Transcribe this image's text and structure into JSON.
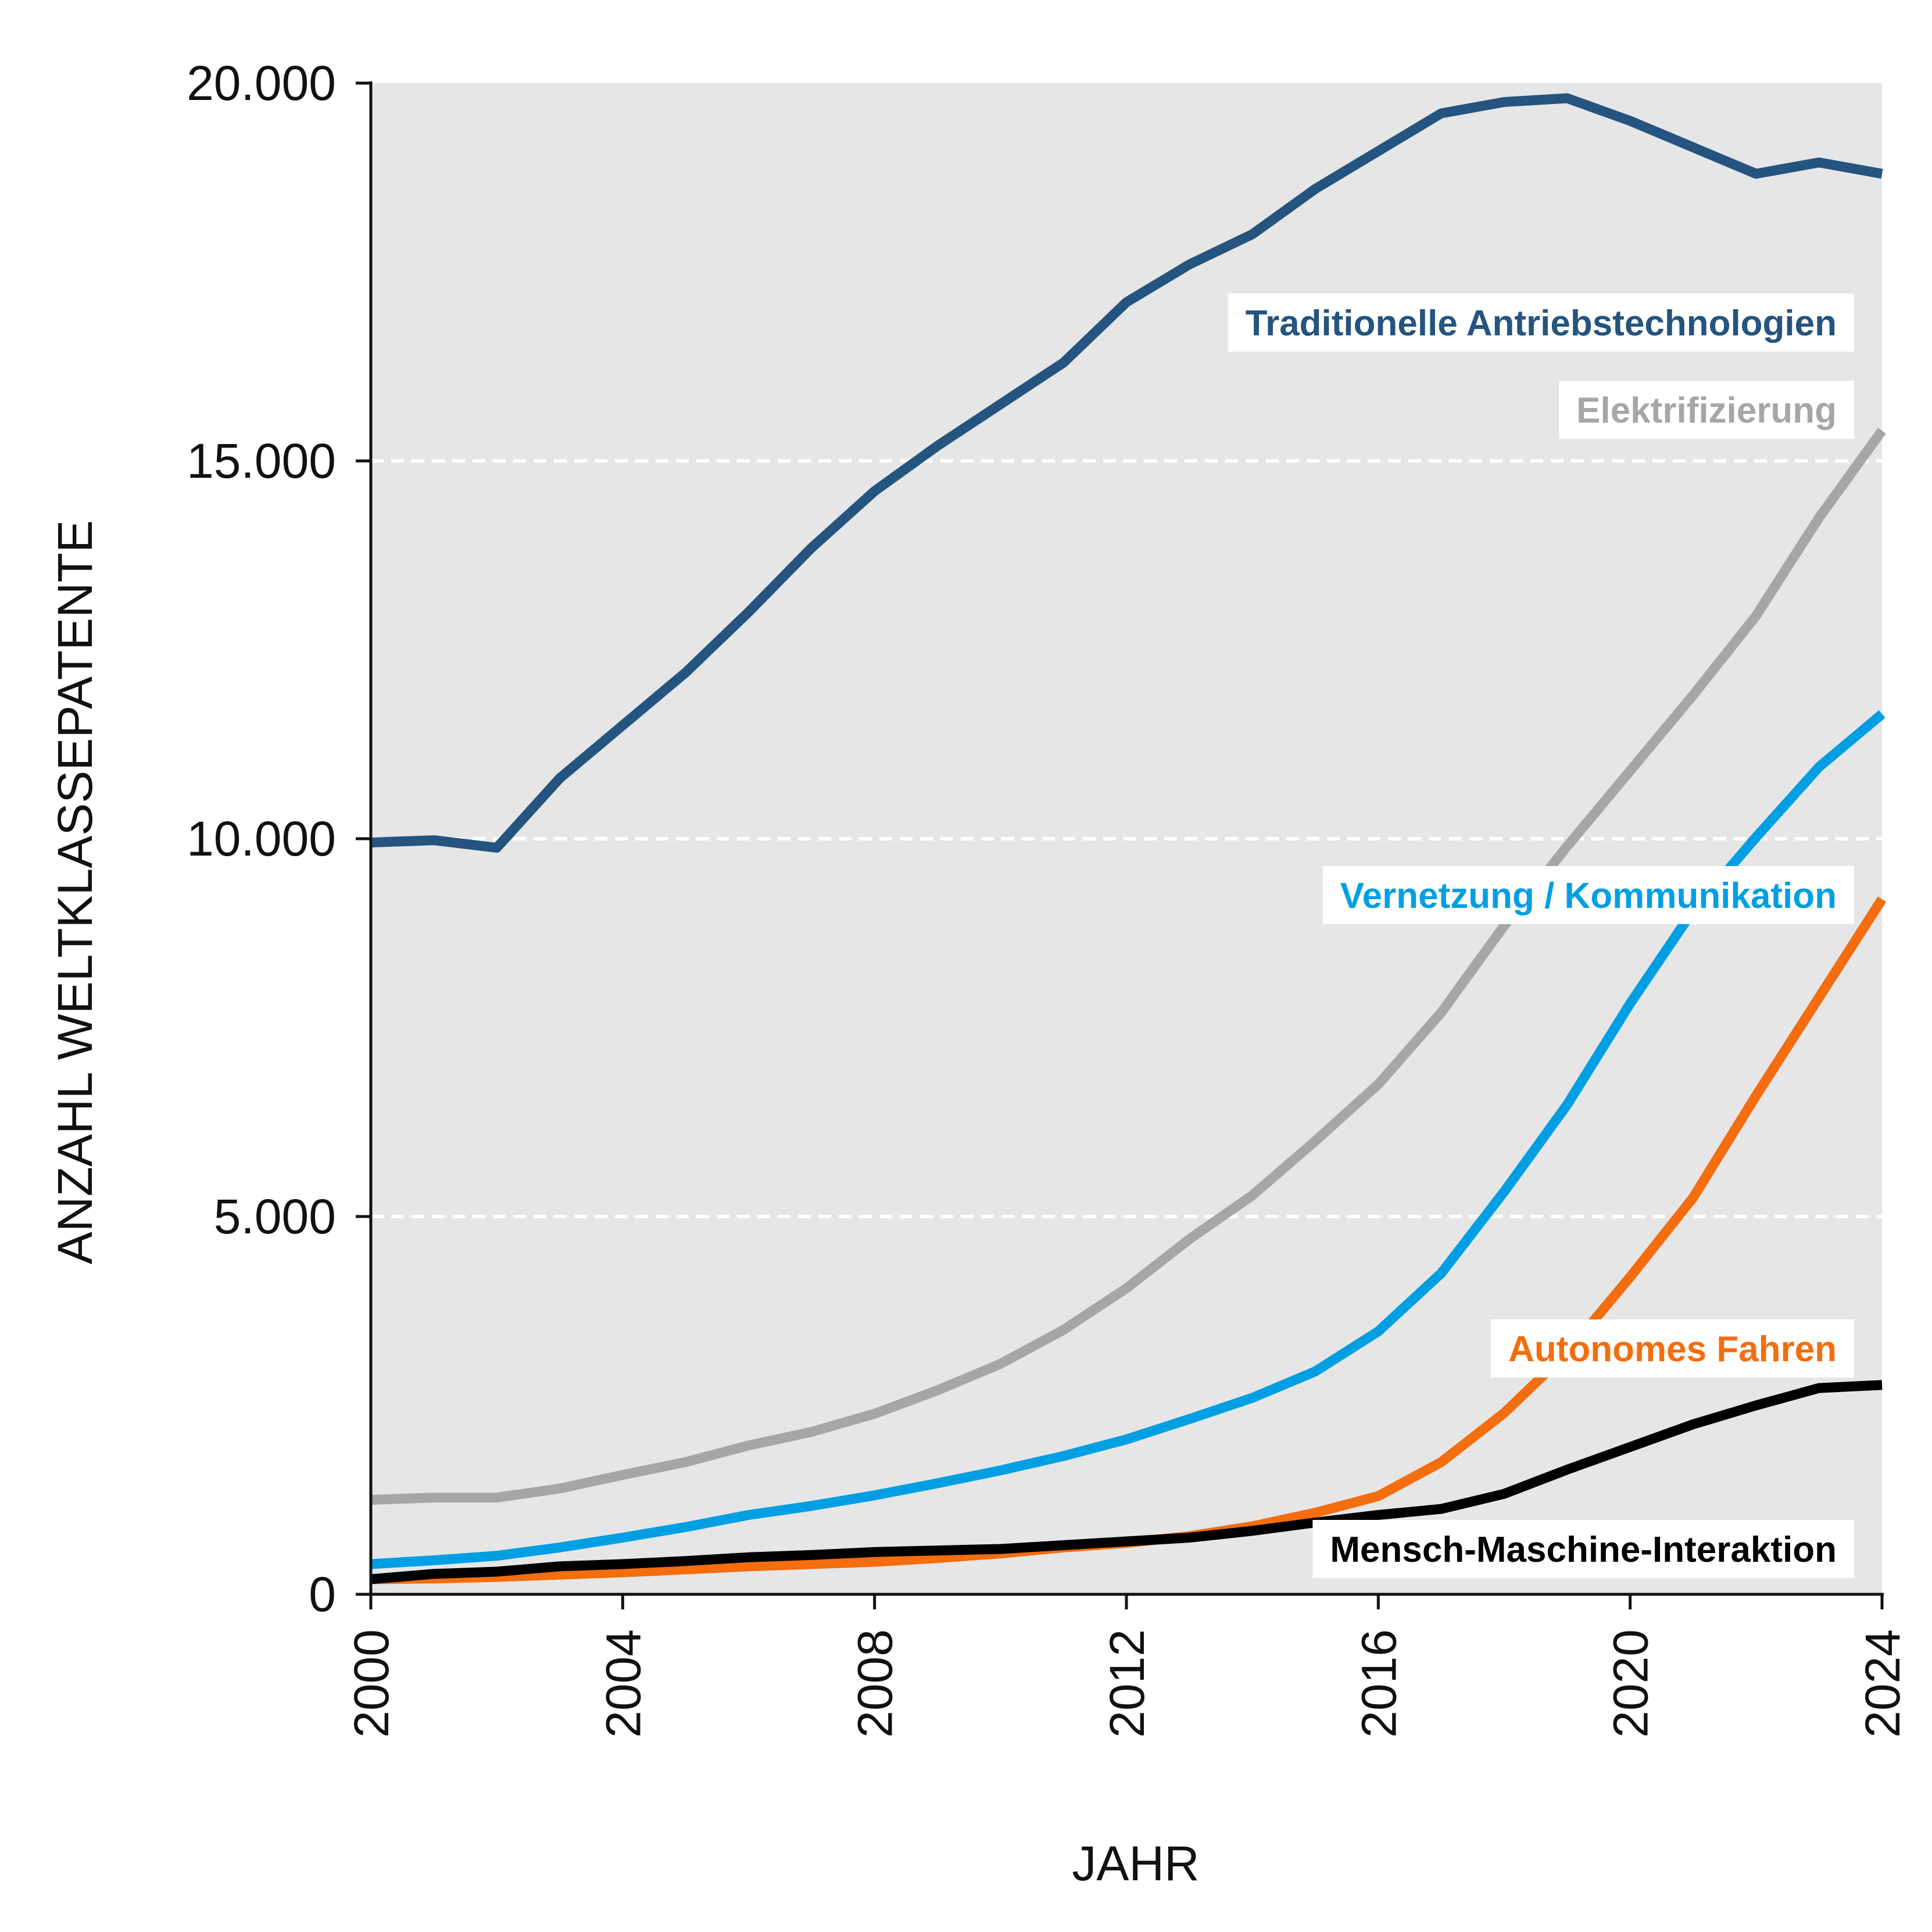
{
  "chart_data": {
    "type": "line",
    "title": "",
    "xlabel": "JAHR",
    "ylabel": "ANZAHL WELTKLASSEPATENTE",
    "xlim": [
      2000,
      2024
    ],
    "ylim": [
      0,
      20000
    ],
    "grid": true,
    "legend": "inline labels at right",
    "x_ticks": [
      "2000",
      "2004",
      "2008",
      "2012",
      "2016",
      "2020",
      "2024"
    ],
    "x_tick_values": [
      2000,
      2004,
      2008,
      2012,
      2016,
      2020,
      2024
    ],
    "y_ticks": [
      "0",
      "5.000",
      "10.000",
      "15.000",
      "20.000"
    ],
    "y_tick_values": [
      0,
      5000,
      10000,
      15000,
      20000
    ],
    "x": [
      2000,
      2001,
      2002,
      2003,
      2004,
      2005,
      2006,
      2007,
      2008,
      2009,
      2010,
      2011,
      2012,
      2013,
      2014,
      2015,
      2016,
      2017,
      2018,
      2019,
      2020,
      2021,
      2022,
      2023,
      2024
    ],
    "series": [
      {
        "name": "Traditionelle Antriebstechnologien",
        "color": "#24547f",
        "values": [
          9950,
          9980,
          9880,
          10800,
          11500,
          12200,
          13000,
          13850,
          14600,
          15200,
          15750,
          16300,
          17100,
          17600,
          18000,
          18600,
          19100,
          19600,
          19750,
          19800,
          19500,
          19150,
          18800,
          18950,
          18800
        ]
      },
      {
        "name": "Elektrifizierung",
        "color": "#a6a6a6",
        "values": [
          1250,
          1280,
          1280,
          1400,
          1580,
          1750,
          1970,
          2150,
          2390,
          2700,
          3050,
          3500,
          4050,
          4700,
          5280,
          6000,
          6750,
          7700,
          8850,
          9900,
          10900,
          11900,
          12950,
          14250,
          15400
        ]
      },
      {
        "name": "Vernetzung / Kommunikation",
        "color": "#009fe3",
        "values": [
          400,
          450,
          510,
          620,
          750,
          890,
          1050,
          1170,
          1310,
          1470,
          1640,
          1830,
          2050,
          2320,
          2600,
          2950,
          3480,
          4250,
          5330,
          6480,
          7820,
          9050,
          10020,
          10950,
          11650
        ]
      },
      {
        "name": "Autonomes Fahren",
        "color": "#f46d0e",
        "values": [
          200,
          210,
          230,
          260,
          290,
          330,
          370,
          400,
          430,
          480,
          540,
          620,
          680,
          770,
          900,
          1080,
          1300,
          1750,
          2400,
          3200,
          4200,
          5250,
          6600,
          7900,
          9200
        ]
      },
      {
        "name": "Mensch-Maschine-Interaktion",
        "color": "#000000",
        "values": [
          200,
          270,
          300,
          370,
          400,
          440,
          490,
          520,
          560,
          580,
          600,
          650,
          700,
          750,
          840,
          950,
          1050,
          1130,
          1330,
          1650,
          1950,
          2250,
          2500,
          2730,
          2770
        ]
      }
    ]
  }
}
